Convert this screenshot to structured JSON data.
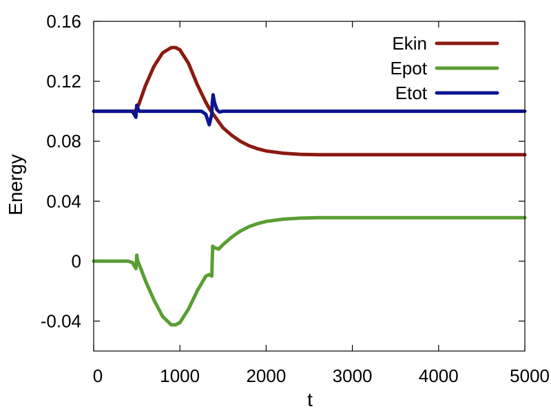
{
  "chart_data": {
    "type": "line",
    "title": "",
    "xlabel": "t",
    "ylabel": "Energy",
    "xlim": [
      0,
      5000
    ],
    "ylim": [
      -0.06,
      0.16
    ],
    "xticks": [
      0,
      1000,
      2000,
      3000,
      4000,
      5000
    ],
    "xtick_labels": [
      "0",
      "1000",
      "2000",
      "3000",
      "4000",
      "5000"
    ],
    "yticks": [
      -0.04,
      0,
      0.04,
      0.08,
      0.12,
      0.16
    ],
    "ytick_labels": [
      "-0.04",
      "0",
      "0.04",
      "0.08",
      "0.12",
      "0.16"
    ],
    "grid": false,
    "legend_position": "top-right",
    "series": [
      {
        "name": "Ekin",
        "color": "#8b1a10",
        "x": [
          0,
          200,
          400,
          480,
          520,
          600,
          700,
          800,
          900,
          950,
          1000,
          1100,
          1200,
          1300,
          1350,
          1400,
          1450,
          1500,
          1600,
          1700,
          1800,
          1900,
          2000,
          2200,
          2400,
          2600,
          3000,
          4000,
          5000
        ],
        "y": [
          0.1,
          0.1,
          0.1,
          0.1,
          0.104,
          0.117,
          0.13,
          0.139,
          0.1425,
          0.1425,
          0.141,
          0.132,
          0.118,
          0.106,
          0.101,
          0.097,
          0.093,
          0.089,
          0.084,
          0.08,
          0.077,
          0.075,
          0.0735,
          0.072,
          0.0712,
          0.071,
          0.071,
          0.071,
          0.071
        ]
      },
      {
        "name": "Epot",
        "color": "#5a9e32",
        "x": [
          0,
          200,
          400,
          450,
          490,
          500,
          510,
          520,
          600,
          700,
          800,
          900,
          950,
          1000,
          1100,
          1200,
          1300,
          1340,
          1370,
          1375,
          1380,
          1400,
          1450,
          1500,
          1600,
          1700,
          1800,
          1900,
          2000,
          2200,
          2400,
          2600,
          3000,
          4000,
          5000
        ],
        "y": [
          0,
          0,
          0,
          -0.001,
          -0.005,
          0.004,
          0.0,
          -0.001,
          -0.013,
          -0.026,
          -0.037,
          -0.0425,
          -0.0425,
          -0.041,
          -0.032,
          -0.02,
          -0.01,
          -0.009,
          -0.01,
          0.0,
          0.01,
          0.009,
          0.008,
          0.011,
          0.016,
          0.02,
          0.023,
          0.025,
          0.0265,
          0.028,
          0.0287,
          0.029,
          0.029,
          0.029,
          0.029
        ]
      },
      {
        "name": "Etot",
        "color": "#0a1490",
        "x": [
          0,
          200,
          400,
          450,
          490,
          500,
          510,
          530,
          560,
          600,
          700,
          800,
          1000,
          1100,
          1200,
          1250,
          1300,
          1340,
          1370,
          1375,
          1385,
          1400,
          1430,
          1460,
          1500,
          1600,
          1700,
          1800,
          2000,
          3000,
          4000,
          5000
        ],
        "y": [
          0.1,
          0.1,
          0.1,
          0.1,
          0.096,
          0.104,
          0.102,
          0.1,
          0.1,
          0.1,
          0.1,
          0.1,
          0.1,
          0.1,
          0.1,
          0.1,
          0.098,
          0.091,
          0.098,
          0.105,
          0.111,
          0.106,
          0.101,
          0.0995,
          0.1,
          0.1,
          0.1,
          0.1,
          0.1,
          0.1,
          0.1,
          0.1
        ]
      }
    ]
  }
}
